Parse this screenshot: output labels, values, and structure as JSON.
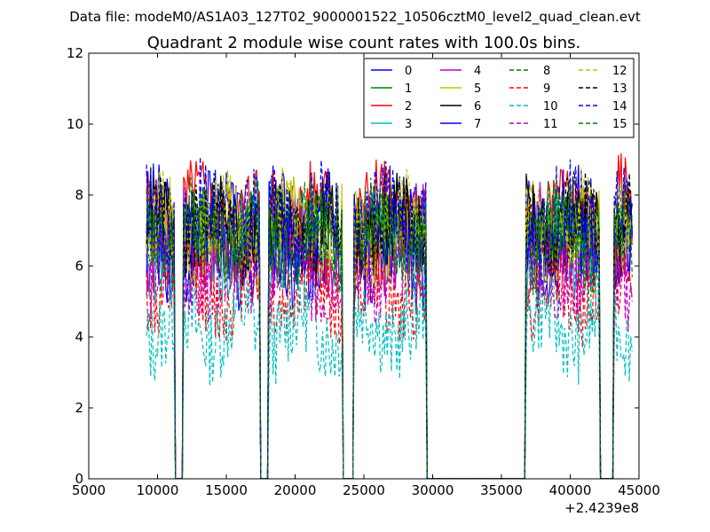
{
  "suptitle": "Data file: modeM0/AS1A03_127T02_9000001522_10506cztM0_level2_quad_clean.evt",
  "chart_data": {
    "type": "line",
    "title": "Quadrant 2 module wise count rates with 100.0s bins.",
    "xlabel": "",
    "ylabel": "",
    "xlim": [
      5000,
      45000
    ],
    "ylim": [
      0,
      12
    ],
    "x_offset_label": "+2.4239e8",
    "xticks": [
      5000,
      10000,
      15000,
      20000,
      25000,
      30000,
      35000,
      40000,
      45000
    ],
    "yticks": [
      0,
      2,
      4,
      6,
      8,
      10,
      12
    ],
    "grid": false,
    "legend_position": "top-right",
    "legend_columns": 4,
    "active_intervals": [
      [
        9200,
        11200
      ],
      [
        11900,
        17400
      ],
      [
        18100,
        23400
      ],
      [
        24300,
        29500
      ],
      [
        36800,
        42100
      ],
      [
        43200,
        44500
      ]
    ],
    "series": [
      {
        "name": "0",
        "color": "#0000ff",
        "style": "solid",
        "mean": 7.3
      },
      {
        "name": "1",
        "color": "#008000",
        "style": "solid",
        "mean": 7.0
      },
      {
        "name": "2",
        "color": "#ff0000",
        "style": "solid",
        "mean": 7.5
      },
      {
        "name": "3",
        "color": "#00bfbf",
        "style": "solid",
        "mean": 6.6
      },
      {
        "name": "4",
        "color": "#bf00bf",
        "style": "solid",
        "mean": 6.7
      },
      {
        "name": "5",
        "color": "#bfbf00",
        "style": "solid",
        "mean": 6.9
      },
      {
        "name": "6",
        "color": "#000000",
        "style": "solid",
        "mean": 7.0
      },
      {
        "name": "7",
        "color": "#0000ff",
        "style": "solid",
        "mean": 6.3
      },
      {
        "name": "8",
        "color": "#008000",
        "style": "dashed",
        "mean": 6.8
      },
      {
        "name": "9",
        "color": "#ff0000",
        "style": "dashed",
        "mean": 5.3
      },
      {
        "name": "10",
        "color": "#00bfbf",
        "style": "dashed",
        "mean": 4.3
      },
      {
        "name": "11",
        "color": "#bf00bf",
        "style": "dashed",
        "mean": 5.8
      },
      {
        "name": "12",
        "color": "#bfbf00",
        "style": "dashed",
        "mean": 7.1
      },
      {
        "name": "13",
        "color": "#000000",
        "style": "dashed",
        "mean": 7.2
      },
      {
        "name": "14",
        "color": "#0000ff",
        "style": "dashed",
        "mean": 7.4
      },
      {
        "name": "15",
        "color": "#008000",
        "style": "dashed",
        "mean": 6.9
      }
    ]
  }
}
